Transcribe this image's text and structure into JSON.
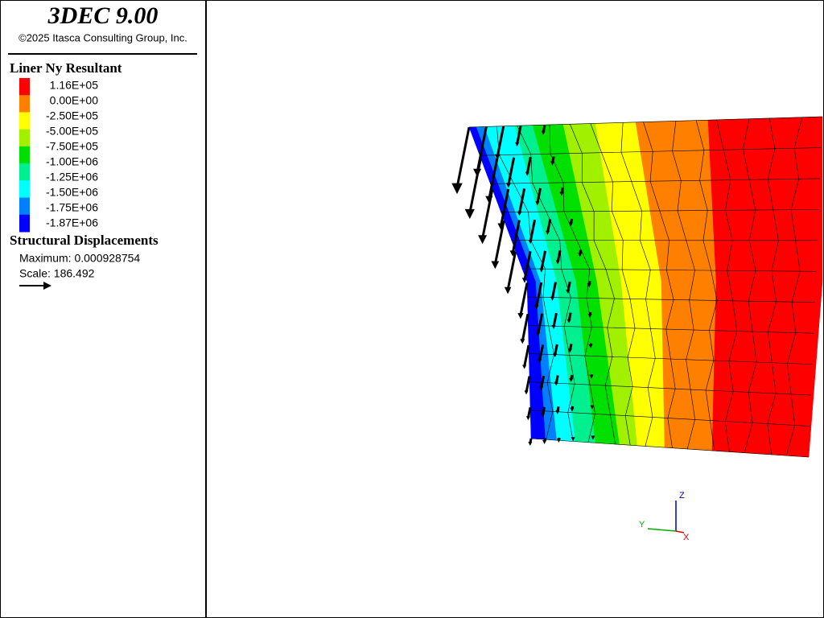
{
  "header": {
    "title": "3DEC 9.00",
    "copyright": "©2025 Itasca Consulting Group, Inc."
  },
  "legend": {
    "title": "Liner Ny Resultant",
    "levels": [
      "1.16E+05",
      "0.00E+00",
      "-2.50E+05",
      "-5.00E+05",
      "-7.50E+05",
      "-1.00E+06",
      "-1.25E+06",
      "-1.50E+06",
      "-1.75E+06",
      "-1.87E+06"
    ],
    "colors": [
      "#ff0000",
      "#ff8000",
      "#ffff00",
      "#a0f000",
      "#00e000",
      "#00f090",
      "#00ffff",
      "#0080ff",
      "#0000ff"
    ]
  },
  "displacements": {
    "title": "Structural Displacements",
    "maximum": "Maximum: 0.000928754",
    "scale": "Scale: 186.492"
  },
  "axes": {
    "z": "Z",
    "y": "Y",
    "x": "X"
  }
}
